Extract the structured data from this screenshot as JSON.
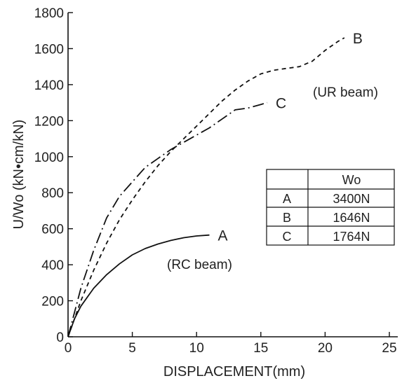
{
  "chart_data": {
    "type": "line",
    "title": "",
    "xlabel": "DISPLACEMENT(mm)",
    "ylabel": "U/Wo (kN•cm/kN)",
    "xlim": [
      0,
      25
    ],
    "ylim": [
      0,
      1800
    ],
    "x_ticks": [
      "0",
      "5",
      "10",
      "15",
      "20",
      "25"
    ],
    "y_ticks": [
      "0",
      "200",
      "400",
      "600",
      "800",
      "1000",
      "1200",
      "1400",
      "1600",
      "1800"
    ],
    "grid": false,
    "series": [
      {
        "name": "A",
        "line_style": "solid",
        "x": [
          0,
          0.5,
          1,
          2,
          3,
          4,
          5,
          6,
          7,
          8,
          9,
          10,
          11
        ],
        "y": [
          0,
          100,
          170,
          270,
          345,
          405,
          455,
          490,
          515,
          535,
          550,
          560,
          565
        ]
      },
      {
        "name": "B",
        "line_style": "dashed",
        "x": [
          0,
          1,
          2,
          3,
          4,
          5,
          6,
          7,
          8,
          9,
          10,
          11,
          12,
          13,
          14,
          15,
          16,
          17,
          18,
          19,
          20,
          21,
          21.5
        ],
        "y": [
          0,
          200,
          370,
          520,
          650,
          760,
          860,
          950,
          1030,
          1100,
          1170,
          1240,
          1310,
          1370,
          1420,
          1460,
          1480,
          1490,
          1500,
          1530,
          1590,
          1640,
          1660
        ]
      },
      {
        "name": "C",
        "line_style": "dash-dot",
        "x": [
          0,
          1,
          2,
          3,
          4,
          5,
          6,
          7,
          8,
          9,
          10,
          11,
          12,
          13,
          14,
          15,
          15.5
        ],
        "y": [
          0,
          270,
          480,
          660,
          780,
          860,
          940,
          990,
          1040,
          1080,
          1120,
          1160,
          1210,
          1260,
          1270,
          1290,
          1300
        ]
      }
    ],
    "annotations": [
      "(RC beam)",
      "(UR beam)"
    ],
    "table": {
      "header": [
        "",
        "Wo"
      ],
      "rows": [
        [
          "A",
          "3400N"
        ],
        [
          "B",
          "1646N"
        ],
        [
          "C",
          "1764N"
        ]
      ]
    }
  }
}
